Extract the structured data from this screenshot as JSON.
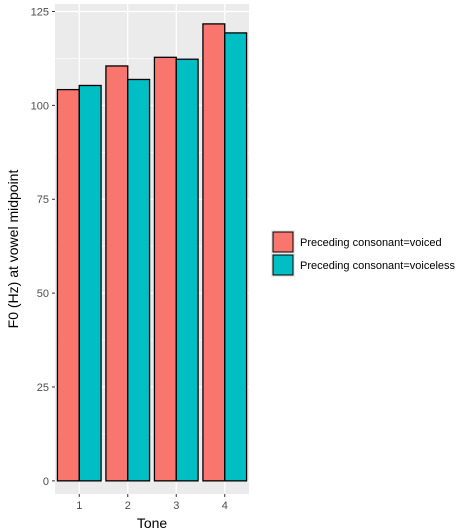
{
  "chart_data": {
    "type": "bar",
    "categories": [
      "1",
      "2",
      "3",
      "4"
    ],
    "series": [
      {
        "name": "Preceding consonant=voiced",
        "values": [
          104.2,
          110.5,
          112.8,
          121.7
        ]
      },
      {
        "name": "Preceding consonant=voiceless",
        "values": [
          105.3,
          106.9,
          112.3,
          119.3
        ]
      }
    ],
    "xlabel": "Tone",
    "ylabel": "F0 (Hz) at vowel midpoint",
    "ylim": [
      -3.5,
      127
    ],
    "yticks": [
      0,
      25,
      50,
      75,
      100,
      125
    ],
    "grid": true,
    "legend_position": "right",
    "colors": {
      "panel_background": "#ebebeb",
      "grid": "#ffffff",
      "series": [
        "#f8766d",
        "#00bfc4"
      ],
      "bar_outline": "#000000"
    }
  }
}
